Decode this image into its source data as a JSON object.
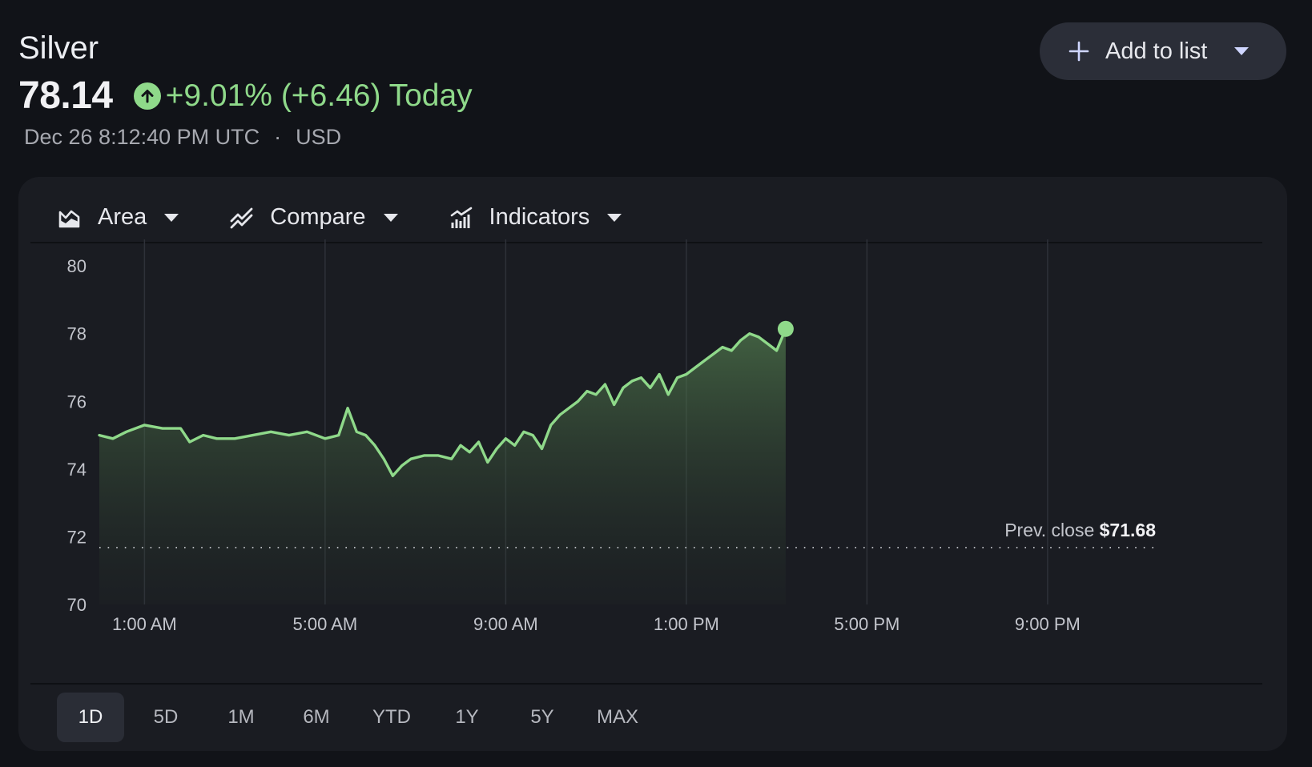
{
  "quote": {
    "name": "Silver",
    "price": "78.14",
    "change": "+9.01% (+6.46) Today",
    "timestamp": "Dec 26 8:12:40 PM UTC",
    "separator": "·",
    "currency": "USD"
  },
  "actions": {
    "add_to_list": "Add to list"
  },
  "toolbar": {
    "area": "Area",
    "compare": "Compare",
    "indicators": "Indicators"
  },
  "icons": {
    "up": "arrow-up-circle-icon",
    "plus": "plus-icon",
    "caret": "caret-down-icon",
    "area": "area-chart-icon",
    "compare": "compare-icon",
    "indicators": "indicators-icon"
  },
  "colors": {
    "positive": "#8fd98a",
    "background": "#111318",
    "card": "#1a1c22"
  },
  "prev_close": {
    "label": "Prev. close",
    "value": "$71.68"
  },
  "ranges": [
    "1D",
    "5D",
    "1M",
    "6M",
    "YTD",
    "1Y",
    "5Y",
    "MAX"
  ],
  "selected_range": "1D",
  "chart_data": {
    "type": "area",
    "title": "",
    "xlabel": "",
    "ylabel": "",
    "ylim": [
      70,
      80.5
    ],
    "yticks": [
      80,
      78,
      76,
      74,
      72,
      70
    ],
    "xticks": [
      {
        "label": "1:00 AM",
        "hour": 1
      },
      {
        "label": "5:00 AM",
        "hour": 5
      },
      {
        "label": "9:00 AM",
        "hour": 9
      },
      {
        "label": "1:00 PM",
        "hour": 13
      },
      {
        "label": "5:00 PM",
        "hour": 17
      },
      {
        "label": "9:00 PM",
        "hour": 21
      }
    ],
    "xlim_hours": [
      0,
      24
    ],
    "grid": "vertical",
    "prev_close": 71.68,
    "series": [
      {
        "x_hours": [
          0,
          0.3,
          0.6,
          1.0,
          1.4,
          1.8,
          2.0,
          2.3,
          2.6,
          3.0,
          3.4,
          3.8,
          4.2,
          4.6,
          5.0,
          5.3,
          5.5,
          5.7,
          5.9,
          6.1,
          6.3,
          6.5,
          6.7,
          6.9,
          7.2,
          7.5,
          7.8,
          8.0,
          8.2,
          8.4,
          8.6,
          8.8,
          9.0,
          9.2,
          9.4,
          9.6,
          9.8,
          10.0,
          10.2,
          10.4,
          10.6,
          10.8,
          11.0,
          11.2,
          11.4,
          11.6,
          11.8,
          12.0,
          12.2,
          12.4,
          12.6,
          12.8,
          13.0,
          13.2,
          13.4,
          13.6,
          13.8,
          14.0,
          14.2,
          14.4,
          14.6,
          14.8,
          15.0,
          15.2
        ],
        "y": [
          75.0,
          74.9,
          75.1,
          75.3,
          75.2,
          75.2,
          74.8,
          75.0,
          74.9,
          74.9,
          75.0,
          75.1,
          75.0,
          75.1,
          74.9,
          75.0,
          75.8,
          75.1,
          75.0,
          74.7,
          74.3,
          73.8,
          74.1,
          74.3,
          74.4,
          74.4,
          74.3,
          74.7,
          74.5,
          74.8,
          74.2,
          74.6,
          74.9,
          74.7,
          75.1,
          75.0,
          74.6,
          75.3,
          75.6,
          75.8,
          76.0,
          76.3,
          76.2,
          76.5,
          75.9,
          76.4,
          76.6,
          76.7,
          76.4,
          76.8,
          76.2,
          76.7,
          76.8,
          77.0,
          77.2,
          77.4,
          77.6,
          77.5,
          77.8,
          78.0,
          77.9,
          77.7,
          77.5,
          78.14
        ]
      }
    ]
  }
}
